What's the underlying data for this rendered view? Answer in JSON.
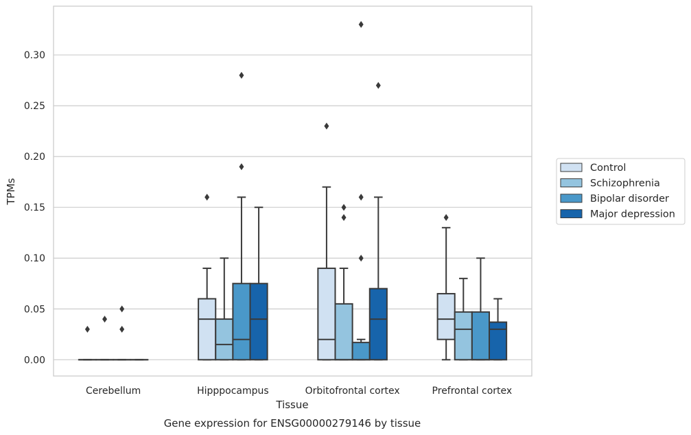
{
  "chart_data": {
    "type": "box",
    "title": "",
    "caption": "Gene expression for ENSG00000279146 by tissue",
    "xlabel": "Tissue",
    "ylabel": "TPMs",
    "ylim": [
      -0.016,
      0.348
    ],
    "yticks": [
      "0.00",
      "0.05",
      "0.10",
      "0.15",
      "0.20",
      "0.25",
      "0.30"
    ],
    "ytick_values": [
      0,
      0.05,
      0.1,
      0.15,
      0.2,
      0.25,
      0.3
    ],
    "grid": "horizontal",
    "legend_placement": "right",
    "categories": [
      "Cerebellum",
      "Hipppocampus",
      "Orbitofrontal cortex",
      "Prefrontal cortex"
    ],
    "series": [
      {
        "name": "Control",
        "color": "#d0e1f2",
        "boxes": [
          {
            "q1": 0,
            "median": 0,
            "q3": 0,
            "whislo": 0,
            "whishi": 0,
            "fliers": [
              0.03
            ]
          },
          {
            "q1": 0,
            "median": 0.04,
            "q3": 0.06,
            "whislo": 0,
            "whishi": 0.09,
            "fliers": [
              0.16
            ]
          },
          {
            "q1": 0,
            "median": 0.02,
            "q3": 0.09,
            "whislo": 0,
            "whishi": 0.17,
            "fliers": [
              0.23
            ]
          },
          {
            "q1": 0.02,
            "median": 0.04,
            "q3": 0.065,
            "whislo": 0,
            "whishi": 0.13,
            "fliers": [
              0.14
            ]
          }
        ]
      },
      {
        "name": "Schizophrenia",
        "color": "#94c4df",
        "boxes": [
          {
            "q1": 0,
            "median": 0,
            "q3": 0,
            "whislo": 0,
            "whishi": 0,
            "fliers": [
              0.04
            ]
          },
          {
            "q1": 0,
            "median": 0.015,
            "q3": 0.04,
            "whislo": 0,
            "whishi": 0.1,
            "fliers": []
          },
          {
            "q1": 0,
            "median": 0,
            "q3": 0.055,
            "whislo": 0,
            "whishi": 0.09,
            "fliers": [
              0.14,
              0.15
            ]
          },
          {
            "q1": 0,
            "median": 0.03,
            "q3": 0.047,
            "whislo": 0,
            "whishi": 0.08,
            "fliers": []
          }
        ]
      },
      {
        "name": "Bipolar disorder",
        "color": "#4a98c9",
        "boxes": [
          {
            "q1": 0,
            "median": 0,
            "q3": 0,
            "whislo": 0,
            "whishi": 0,
            "fliers": [
              0.03,
              0.05
            ]
          },
          {
            "q1": 0,
            "median": 0.02,
            "q3": 0.075,
            "whislo": 0,
            "whishi": 0.16,
            "fliers": [
              0.19,
              0.28
            ]
          },
          {
            "q1": 0,
            "median": 0,
            "q3": 0.017,
            "whislo": 0,
            "whishi": 0.02,
            "fliers": [
              0.1,
              0.16,
              0.33
            ]
          },
          {
            "q1": 0,
            "median": 0,
            "q3": 0.047,
            "whislo": 0,
            "whishi": 0.1,
            "fliers": []
          }
        ]
      },
      {
        "name": "Major depression",
        "color": "#1764ab",
        "boxes": [
          {
            "q1": 0,
            "median": 0,
            "q3": 0,
            "whislo": 0,
            "whishi": 0,
            "fliers": []
          },
          {
            "q1": 0,
            "median": 0.04,
            "q3": 0.075,
            "whislo": 0,
            "whishi": 0.15,
            "fliers": []
          },
          {
            "q1": 0,
            "median": 0.04,
            "q3": 0.07,
            "whislo": 0,
            "whishi": 0.16,
            "fliers": [
              0.27
            ]
          },
          {
            "q1": 0,
            "median": 0.03,
            "q3": 0.037,
            "whislo": 0,
            "whishi": 0.06,
            "fliers": []
          }
        ]
      }
    ]
  }
}
